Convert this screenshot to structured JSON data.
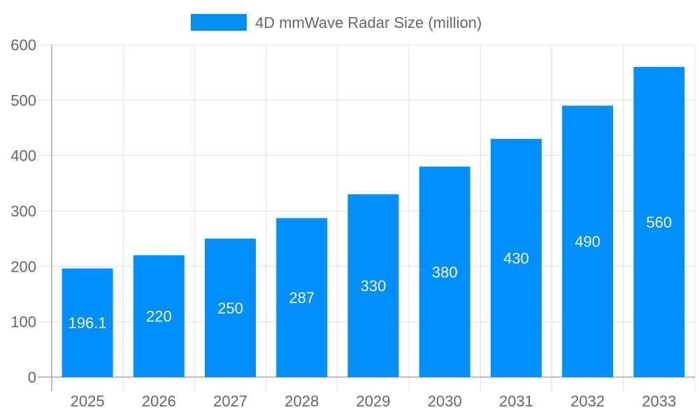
{
  "chart_data": {
    "type": "bar",
    "title": "",
    "xlabel": "",
    "ylabel": "",
    "categories": [
      "2025",
      "2026",
      "2027",
      "2028",
      "2029",
      "2030",
      "2031",
      "2032",
      "2033"
    ],
    "series": [
      {
        "name": "4D mmWave Radar Size (million)",
        "values": [
          196.1,
          220,
          250,
          287,
          330,
          380,
          430,
          490,
          560
        ],
        "color": "#008ffb"
      }
    ],
    "data_labels": [
      "196.1",
      "220",
      "250",
      "287",
      "330",
      "380",
      "430",
      "490",
      "560"
    ],
    "ylim": [
      0,
      600
    ],
    "yticks": [
      "0",
      "100",
      "200",
      "300",
      "400",
      "500",
      "600"
    ],
    "grid": true,
    "legend": "top-center"
  }
}
